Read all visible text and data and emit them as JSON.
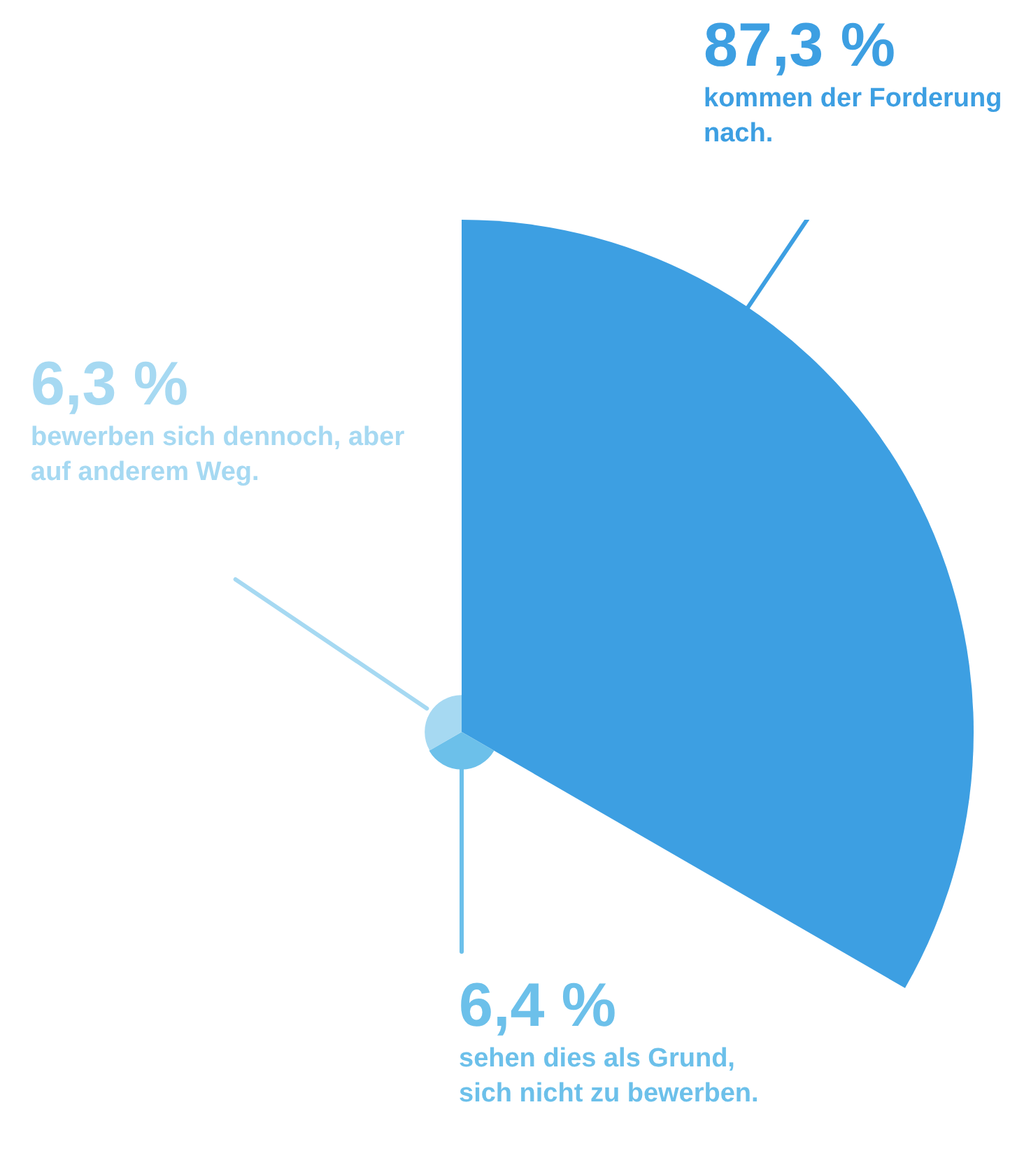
{
  "chart_data": {
    "type": "other",
    "categories": [
      "kommen der Forderung nach.",
      "sehen dies als Grund, sich nicht zu bewerben.",
      "bewerben sich dennoch, aber auf anderem Weg."
    ],
    "values": [
      87.3,
      6.4,
      6.3
    ],
    "value_labels": [
      "87,3 %",
      "6,4 %",
      "6,3 %"
    ],
    "colors": [
      "#3d9fe2",
      "#6cc0ea",
      "#a6d9f2"
    ]
  }
}
